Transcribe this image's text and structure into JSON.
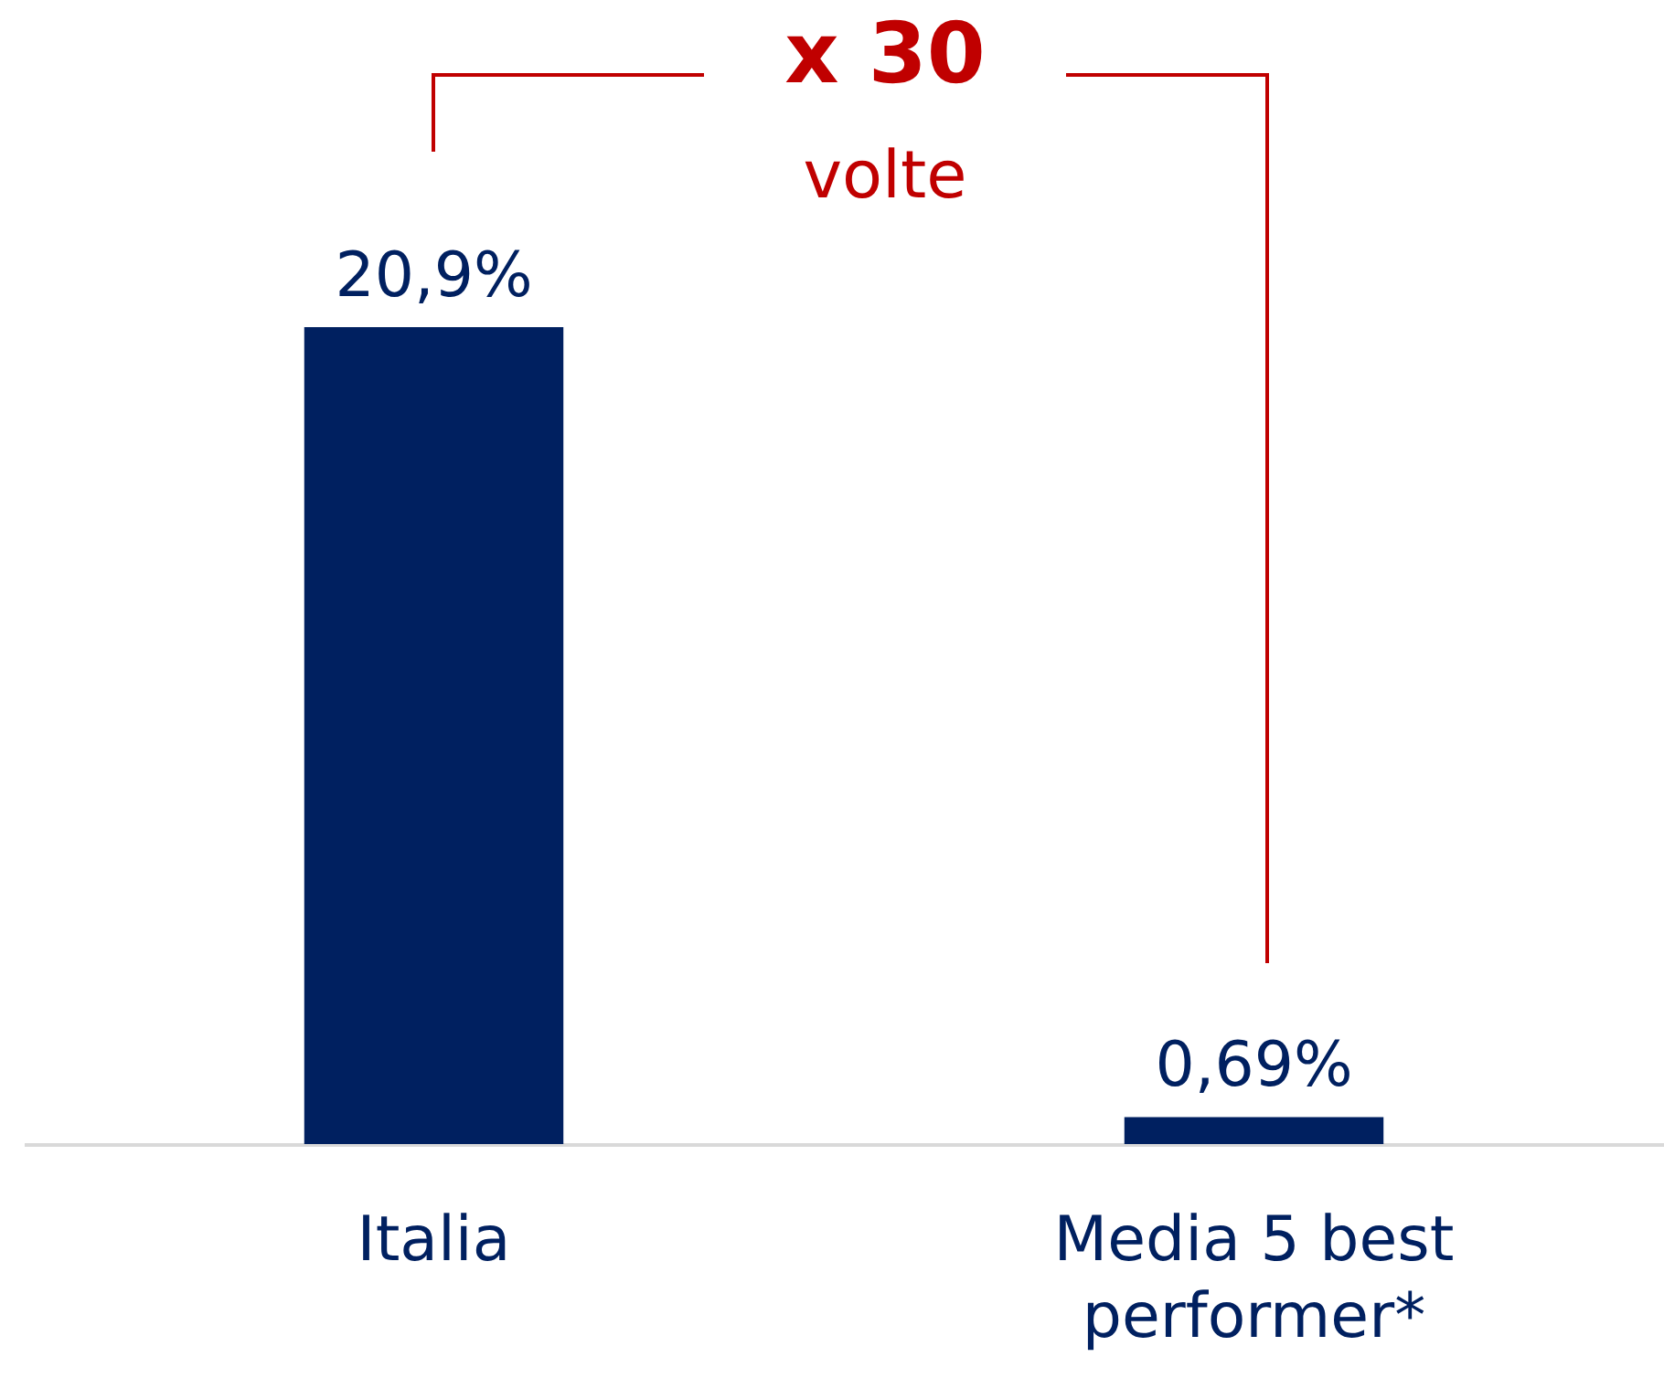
{
  "chart_data": {
    "type": "bar",
    "categories": [
      "Italia",
      "Media 5 best performer*"
    ],
    "values": [
      20.9,
      0.69
    ],
    "value_labels": [
      "20,9%",
      "0,69%"
    ],
    "color": "#002060",
    "annotations": [
      "x 30",
      "volte"
    ]
  }
}
